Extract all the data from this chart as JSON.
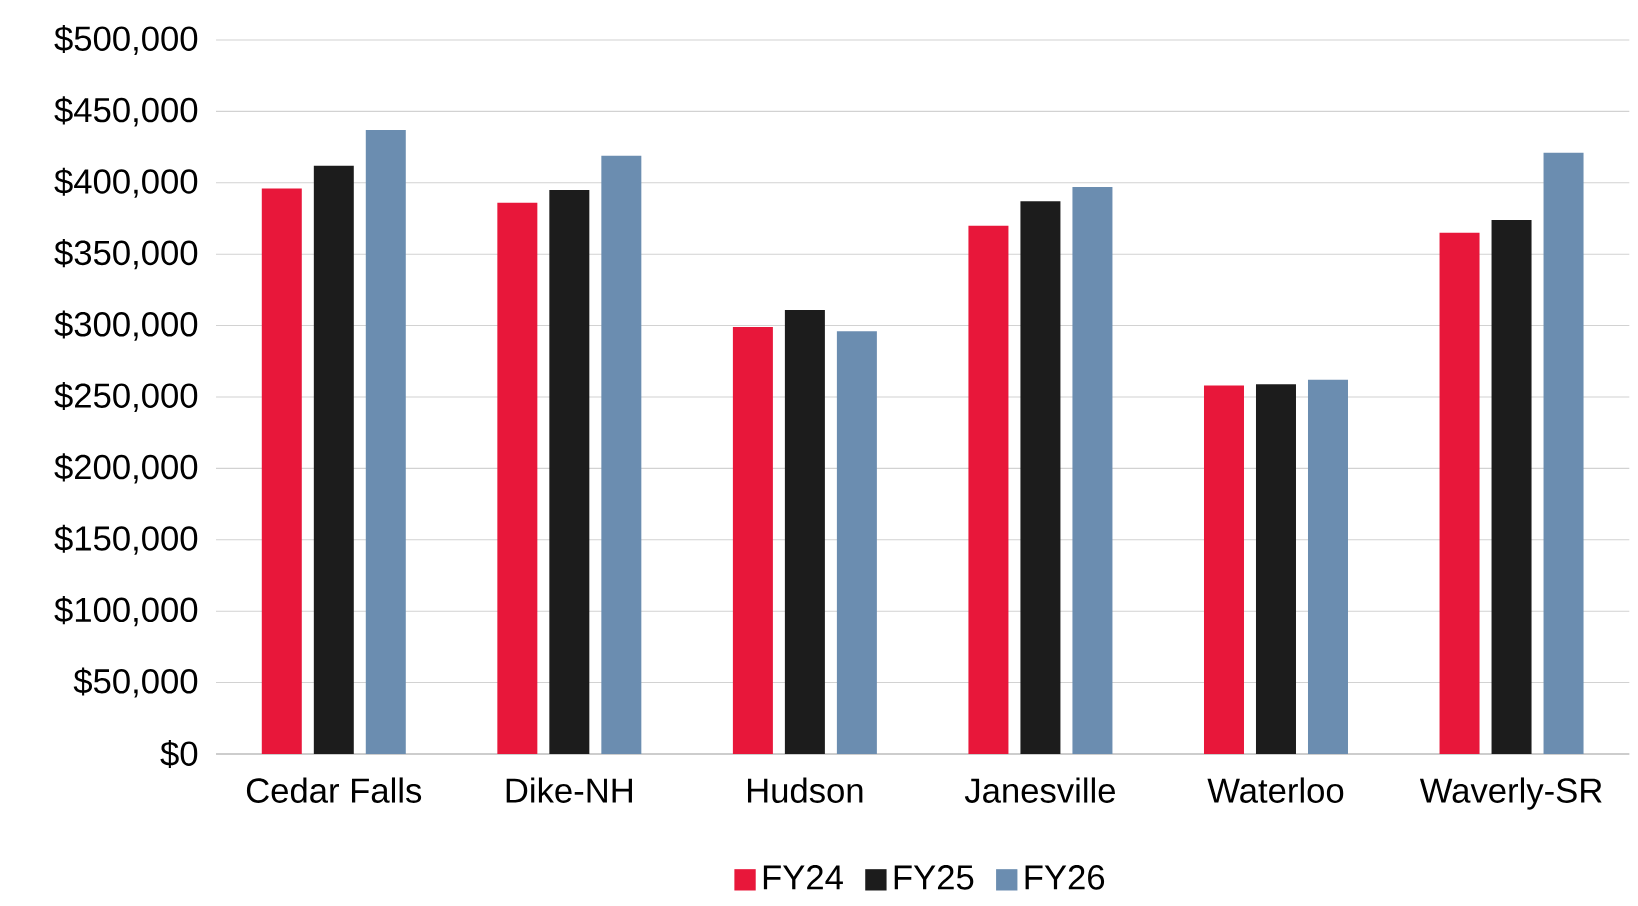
{
  "chart_data": {
    "type": "bar",
    "categories": [
      "Cedar Falls",
      "Dike-NH",
      "Hudson",
      "Janesville",
      "Waterloo",
      "Waverly-SR"
    ],
    "series": [
      {
        "name": "FY24",
        "color": "#e8173a",
        "values": [
          396000,
          386000,
          299000,
          370000,
          258000,
          365000
        ]
      },
      {
        "name": "FY25",
        "color": "#1c1c1c",
        "values": [
          412000,
          395000,
          311000,
          387000,
          259000,
          374000
        ]
      },
      {
        "name": "FY26",
        "color": "#6b8db0",
        "values": [
          437000,
          419000,
          296000,
          397000,
          262000,
          421000
        ]
      }
    ],
    "ylim": [
      0,
      500000
    ],
    "yticks": [
      {
        "value": 0,
        "label": "$0"
      },
      {
        "value": 50000,
        "label": "$50,000"
      },
      {
        "value": 100000,
        "label": "$100,000"
      },
      {
        "value": 150000,
        "label": "$150,000"
      },
      {
        "value": 200000,
        "label": "$200,000"
      },
      {
        "value": 250000,
        "label": "$250,000"
      },
      {
        "value": 300000,
        "label": "$300,000"
      },
      {
        "value": 350000,
        "label": "$350,000"
      },
      {
        "value": 400000,
        "label": "$400,000"
      },
      {
        "value": 450000,
        "label": "$450,000"
      },
      {
        "value": 500000,
        "label": "$500,000"
      }
    ],
    "grid": "y",
    "legend": "bottom"
  }
}
